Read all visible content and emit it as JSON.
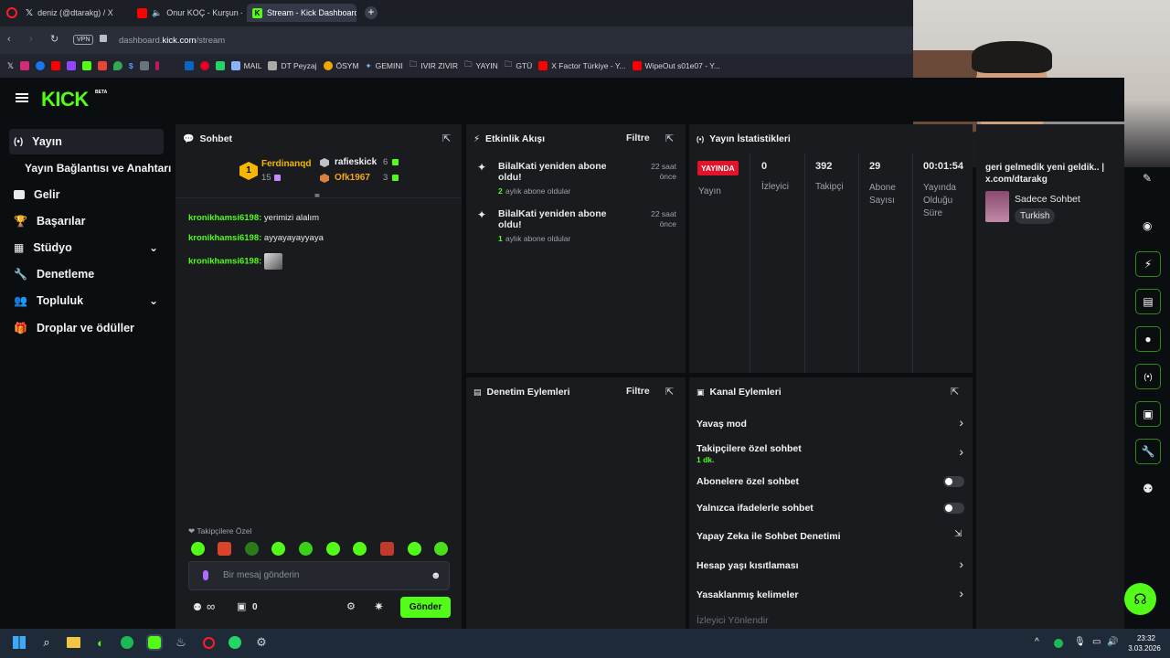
{
  "browser": {
    "tabs": [
      {
        "label": "deniz (@dtarakg) / X"
      },
      {
        "label": "Onur KOÇ - Kurşun - Y"
      },
      {
        "label": "Stream - Kick Dashboard"
      }
    ],
    "vpn_label": "VPN",
    "url_domain_prefix": "dashboard.",
    "url_domain": "kick.com",
    "url_path": "/stream",
    "bookmarks": [
      "MAIL",
      "DT Peyzaj",
      "ÖSYM",
      "GEMINI",
      "IVIR ZIVIR",
      "YAYIN",
      "GTÜ",
      "X Factor Türkiye - Y...",
      "WipeOut s01e07 - Y..."
    ]
  },
  "app": {
    "logo": "KICK",
    "logo_badge": "BETA"
  },
  "sidebar": {
    "items": [
      {
        "label": "Yayın",
        "icon": "broadcast-icon"
      },
      {
        "label": "Yayın Bağlantısı ve Anahtarı",
        "icon": ""
      },
      {
        "label": "Gelir",
        "icon": "wallet-icon"
      },
      {
        "label": "Başarılar",
        "icon": "trophy-icon"
      },
      {
        "label": "Stüdyo",
        "icon": "grid-icon"
      },
      {
        "label": "Denetleme",
        "icon": "wrench-icon"
      },
      {
        "label": "Topluluk",
        "icon": "users-icon"
      },
      {
        "label": "Droplar ve ödüller",
        "icon": "gift-icon"
      }
    ]
  },
  "chat": {
    "title": "Sohbet",
    "top_gifter": {
      "rank": "1",
      "name": "Ferdinanqd",
      "count": "15"
    },
    "gifters": [
      {
        "name": "rafieskick",
        "count": "6"
      },
      {
        "name": "Ofk1967",
        "count": "3"
      }
    ],
    "messages": [
      {
        "user": "kronikhamsi6198:",
        "text": "yerimizi alalım"
      },
      {
        "user": "kronikhamsi6198:",
        "text": "ayyayayayyaya"
      },
      {
        "user": "kronikhamsi6198:",
        "text": ""
      }
    ],
    "followers_only_label": "Takipçilere Özel",
    "input_placeholder": "Bir mesaj gönderin",
    "viewer_count": "0",
    "send_label": "Gönder"
  },
  "activity": {
    "title": "Etkinlik Akışı",
    "filter_label": "Filtre",
    "items": [
      {
        "title": "BilalKati yeniden abone oldu!",
        "months": "2",
        "sub": "aylık abone oldular",
        "time": "22 saat önce"
      },
      {
        "title": "BilalKati yeniden abone oldu!",
        "months": "1",
        "sub": "aylık abone oldular",
        "time": "22 saat önce"
      }
    ]
  },
  "stats": {
    "title": "Yayın İstatistikleri",
    "live_badge": "YAYINDA",
    "live_label": "Yayın",
    "viewers_value": "0",
    "viewers_label": "İzleyici",
    "followers_value": "392",
    "followers_label": "Takipçi",
    "subs_value": "29",
    "subs_label": "Abone Sayısı",
    "uptime_value": "00:01:54",
    "uptime_label": "Yayında Olduğu Süre"
  },
  "moderation": {
    "title": "Denetim Eylemleri",
    "filter_label": "Filtre"
  },
  "channel_actions": {
    "title": "Kanal Eylemleri",
    "items": [
      {
        "label": "Yavaş mod",
        "sub": ""
      },
      {
        "label": "Takipçilere özel sohbet",
        "sub": "1 dk."
      },
      {
        "label": "Abonelere özel sohbet",
        "sub": ""
      },
      {
        "label": "Yalnızca ifadelerle sohbet",
        "sub": ""
      },
      {
        "label": "Yapay Zeka ile Sohbet Denetimi",
        "sub": ""
      },
      {
        "label": "Hesap yaşı kısıtlaması",
        "sub": ""
      },
      {
        "label": "Yasaklanmış kelimeler",
        "sub": ""
      },
      {
        "label": "İzleyici Yönlendir",
        "sub": ""
      }
    ]
  },
  "stream_info": {
    "title_line1": "geri gelmedik yeni geldik.. |",
    "title_line2": "x.com/dtarakg",
    "category": "Sadece Sohbet",
    "language": "Turkish"
  },
  "taskbar": {
    "time": "23:32",
    "date": "3.03.2026"
  },
  "colors": {
    "brand": "#53fc18",
    "live": "#e3132c"
  }
}
